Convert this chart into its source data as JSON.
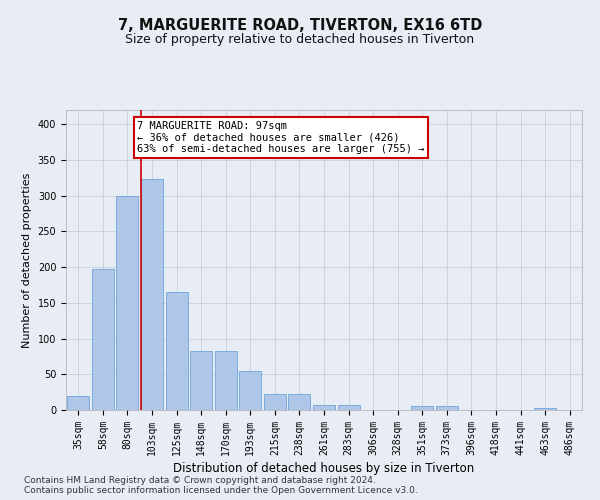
{
  "title1": "7, MARGUERITE ROAD, TIVERTON, EX16 6TD",
  "title2": "Size of property relative to detached houses in Tiverton",
  "xlabel": "Distribution of detached houses by size in Tiverton",
  "ylabel": "Number of detached properties",
  "footnote1": "Contains HM Land Registry data © Crown copyright and database right 2024.",
  "footnote2": "Contains public sector information licensed under the Open Government Licence v3.0.",
  "bar_labels": [
    "35sqm",
    "58sqm",
    "80sqm",
    "103sqm",
    "125sqm",
    "148sqm",
    "170sqm",
    "193sqm",
    "215sqm",
    "238sqm",
    "261sqm",
    "283sqm",
    "306sqm",
    "328sqm",
    "351sqm",
    "373sqm",
    "396sqm",
    "418sqm",
    "441sqm",
    "463sqm",
    "486sqm"
  ],
  "bar_values": [
    20,
    197,
    299,
    323,
    165,
    82,
    82,
    55,
    22,
    22,
    7,
    7,
    0,
    0,
    5,
    5,
    0,
    0,
    0,
    3,
    0
  ],
  "bar_color": "#aec6e8",
  "bar_edge_color": "#5b9bd5",
  "grid_color": "#c8d0de",
  "background_color": "#e8edf5",
  "annotation_text": "7 MARGUERITE ROAD: 97sqm\n← 36% of detached houses are smaller (426)\n63% of semi-detached houses are larger (755) →",
  "annotation_box_color": "#ffffff",
  "annotation_box_edge": "#cc0000",
  "vline_x": 2.55,
  "vline_color": "#cc0000",
  "ylim": [
    0,
    420
  ],
  "yticks": [
    0,
    50,
    100,
    150,
    200,
    250,
    300,
    350,
    400
  ],
  "title1_fontsize": 10.5,
  "title2_fontsize": 9,
  "xlabel_fontsize": 8.5,
  "ylabel_fontsize": 8,
  "tick_fontsize": 7,
  "footnote_fontsize": 6.5,
  "annot_fontsize": 7.5
}
